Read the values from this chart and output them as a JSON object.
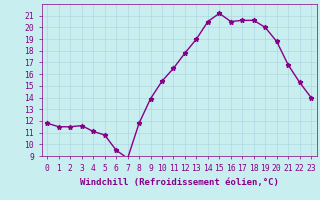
{
  "x": [
    0,
    1,
    2,
    3,
    4,
    5,
    6,
    7,
    8,
    9,
    10,
    11,
    12,
    13,
    14,
    15,
    16,
    17,
    18,
    19,
    20,
    21,
    22,
    23
  ],
  "y": [
    11.8,
    11.5,
    11.5,
    11.6,
    11.1,
    10.8,
    9.5,
    8.8,
    11.8,
    13.9,
    15.4,
    16.5,
    17.8,
    19.0,
    20.5,
    21.2,
    20.5,
    20.6,
    20.6,
    20.0,
    18.8,
    16.8,
    15.3,
    14.0
  ],
  "line_color": "#880088",
  "marker": "*",
  "marker_size": 3.5,
  "bg_color": "#c8eef0",
  "grid_color": "#b0d8e0",
  "xlabel": "Windchill (Refroidissement éolien,°C)",
  "ylim": [
    9,
    22
  ],
  "xlim": [
    -0.5,
    23.5
  ],
  "yticks": [
    9,
    10,
    11,
    12,
    13,
    14,
    15,
    16,
    17,
    18,
    19,
    20,
    21
  ],
  "xticks": [
    0,
    1,
    2,
    3,
    4,
    5,
    6,
    7,
    8,
    9,
    10,
    11,
    12,
    13,
    14,
    15,
    16,
    17,
    18,
    19,
    20,
    21,
    22,
    23
  ],
  "xlabel_fontsize": 6.5,
  "tick_fontsize": 5.8,
  "line_width": 1.0
}
